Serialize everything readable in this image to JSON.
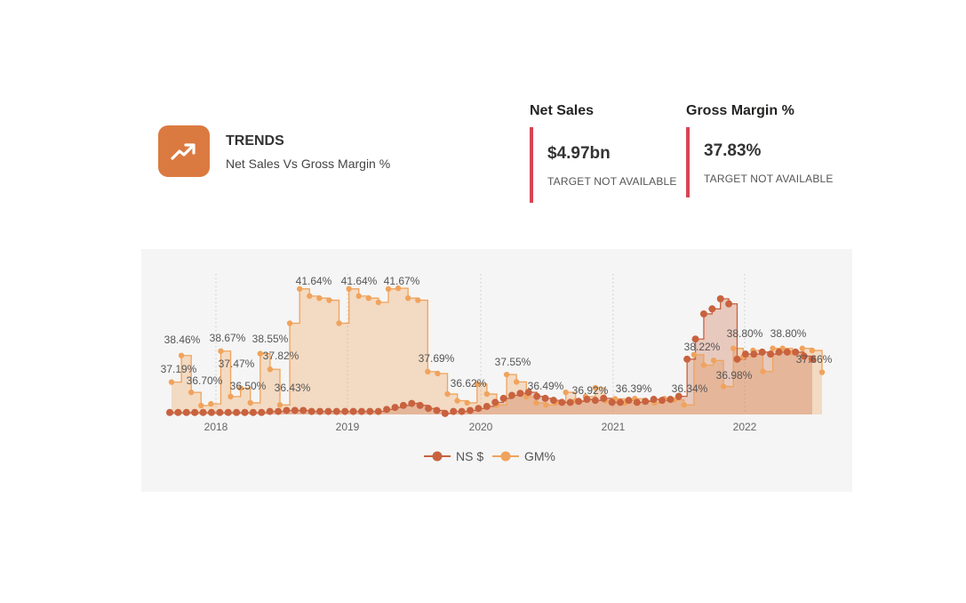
{
  "header": {
    "icon": "trend-up-icon",
    "title": "TRENDS",
    "subtitle": "Net Sales Vs Gross Margin %"
  },
  "kpis": [
    {
      "label": "Net Sales",
      "value": "$4.97bn",
      "target": "TARGET NOT AVAILABLE"
    },
    {
      "label": "Gross Margin %",
      "value": "37.83%",
      "target": "TARGET NOT AVAILABLE"
    }
  ],
  "colors": {
    "ns": "#c8623f",
    "gm": "#f0a35c",
    "accent_bar": "#d64554",
    "icon_bg": "#db7a40"
  },
  "chart_data": {
    "type": "area",
    "title": "",
    "xlabel": "",
    "ylabel": "",
    "x_tick_labels": [
      "2018",
      "2019",
      "2020",
      "2021",
      "2022"
    ],
    "legend": {
      "placement": "bottom"
    },
    "grid": false,
    "series": [
      {
        "name": "NS $",
        "axis": "left-relative",
        "values": [
          2,
          2,
          2,
          2,
          2,
          2,
          2,
          2,
          2,
          2,
          2,
          2,
          3,
          3,
          4,
          4,
          4,
          3,
          3,
          3,
          3,
          3,
          3,
          3,
          3,
          3,
          5,
          7,
          9,
          11,
          9,
          6,
          4,
          1,
          3,
          3,
          4,
          6,
          8,
          12,
          16,
          19,
          21,
          22,
          18,
          16,
          14,
          12,
          12,
          13,
          15,
          14,
          16,
          12,
          12,
          14,
          12,
          13,
          15,
          14,
          15,
          18,
          55,
          75,
          100,
          105,
          115,
          110,
          55,
          60,
          60,
          62,
          60,
          62,
          62,
          62,
          58,
          55
        ]
      },
      {
        "name": "GM%",
        "axis": "right-percent",
        "ylim": [
          35.9,
          42.1
        ],
        "values": [
          37.19,
          38.46,
          36.7,
          36.07,
          36.15,
          38.67,
          36.5,
          36.9,
          36.2,
          38.55,
          37.8,
          36.1,
          40.0,
          41.64,
          41.3,
          41.2,
          41.1,
          40.0,
          41.64,
          41.3,
          41.2,
          41.0,
          41.64,
          41.67,
          41.2,
          41.1,
          37.69,
          37.6,
          36.62,
          36.3,
          36.2,
          37.1,
          36.62,
          36.1,
          37.55,
          37.2,
          36.49,
          36.2,
          36.1,
          36.2,
          36.7,
          36.3,
          36.5,
          36.92,
          36.3,
          36.39,
          36.2,
          36.4,
          36.3,
          36.2,
          36.4,
          36.34,
          36.1,
          38.5,
          38.0,
          38.22,
          36.98,
          38.8,
          38.4,
          38.7,
          37.7,
          38.8,
          38.8,
          38.6,
          38.8,
          38.7,
          37.66
        ],
        "visible_data_labels": [
          "38.46%",
          "37.19%",
          "36.70%",
          "38.67%",
          "37.47%",
          "36.50%",
          "38.55%",
          "37.82%",
          "36.43%",
          "41.64%",
          "41.64%",
          "41.67%",
          "37.69%",
          "36.62%",
          "37.55%",
          "36.49%",
          "36.92%",
          "36.39%",
          "36.34%",
          "38.22%",
          "36.98%",
          "38.80%",
          "38.80%",
          "37.66%"
        ]
      }
    ]
  }
}
